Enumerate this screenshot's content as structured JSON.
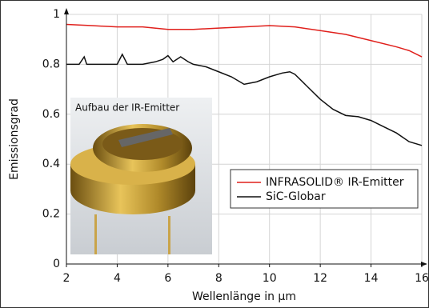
{
  "chart_data": {
    "type": "line",
    "x_label": "Wellenlänge in µm",
    "y_label": "Emissionsgrad",
    "annotations": [
      "Aufbau der IR-Emitter"
    ],
    "xlim": [
      2,
      16
    ],
    "xticks": [
      2,
      4,
      6,
      8,
      10,
      12,
      14,
      16
    ],
    "ylim": [
      0,
      1
    ],
    "yticks": [
      0,
      0.2,
      0.4,
      0.6,
      0.8,
      1
    ],
    "grid": true,
    "legend": "center right",
    "series": [
      {
        "name": "INFRASOLID® IR-Emitter",
        "color": "#e0201c",
        "x": [
          2,
          3,
          4,
          5,
          6,
          7,
          8,
          9,
          10,
          11,
          12,
          13,
          14,
          15,
          15.5,
          16
        ],
        "values": [
          0.96,
          0.955,
          0.95,
          0.95,
          0.94,
          0.94,
          0.945,
          0.95,
          0.955,
          0.95,
          0.935,
          0.92,
          0.895,
          0.87,
          0.855,
          0.83
        ]
      },
      {
        "name": "SiC-Globar",
        "color": "#111111",
        "x": [
          2,
          2.5,
          2.7,
          2.8,
          3,
          4,
          4.2,
          4.4,
          5,
          5.5,
          5.8,
          6,
          6.2,
          6.5,
          6.8,
          7,
          7.5,
          8,
          8.5,
          9,
          9.5,
          10,
          10.5,
          10.8,
          11,
          11.5,
          12,
          12.5,
          13,
          13.5,
          14,
          14.5,
          15,
          15.5,
          16
        ],
        "values": [
          0.8,
          0.8,
          0.83,
          0.8,
          0.8,
          0.8,
          0.84,
          0.8,
          0.8,
          0.81,
          0.82,
          0.835,
          0.81,
          0.83,
          0.81,
          0.8,
          0.79,
          0.77,
          0.75,
          0.72,
          0.73,
          0.75,
          0.765,
          0.77,
          0.76,
          0.71,
          0.66,
          0.62,
          0.595,
          0.59,
          0.575,
          0.55,
          0.525,
          0.49,
          0.475
        ]
      }
    ]
  }
}
